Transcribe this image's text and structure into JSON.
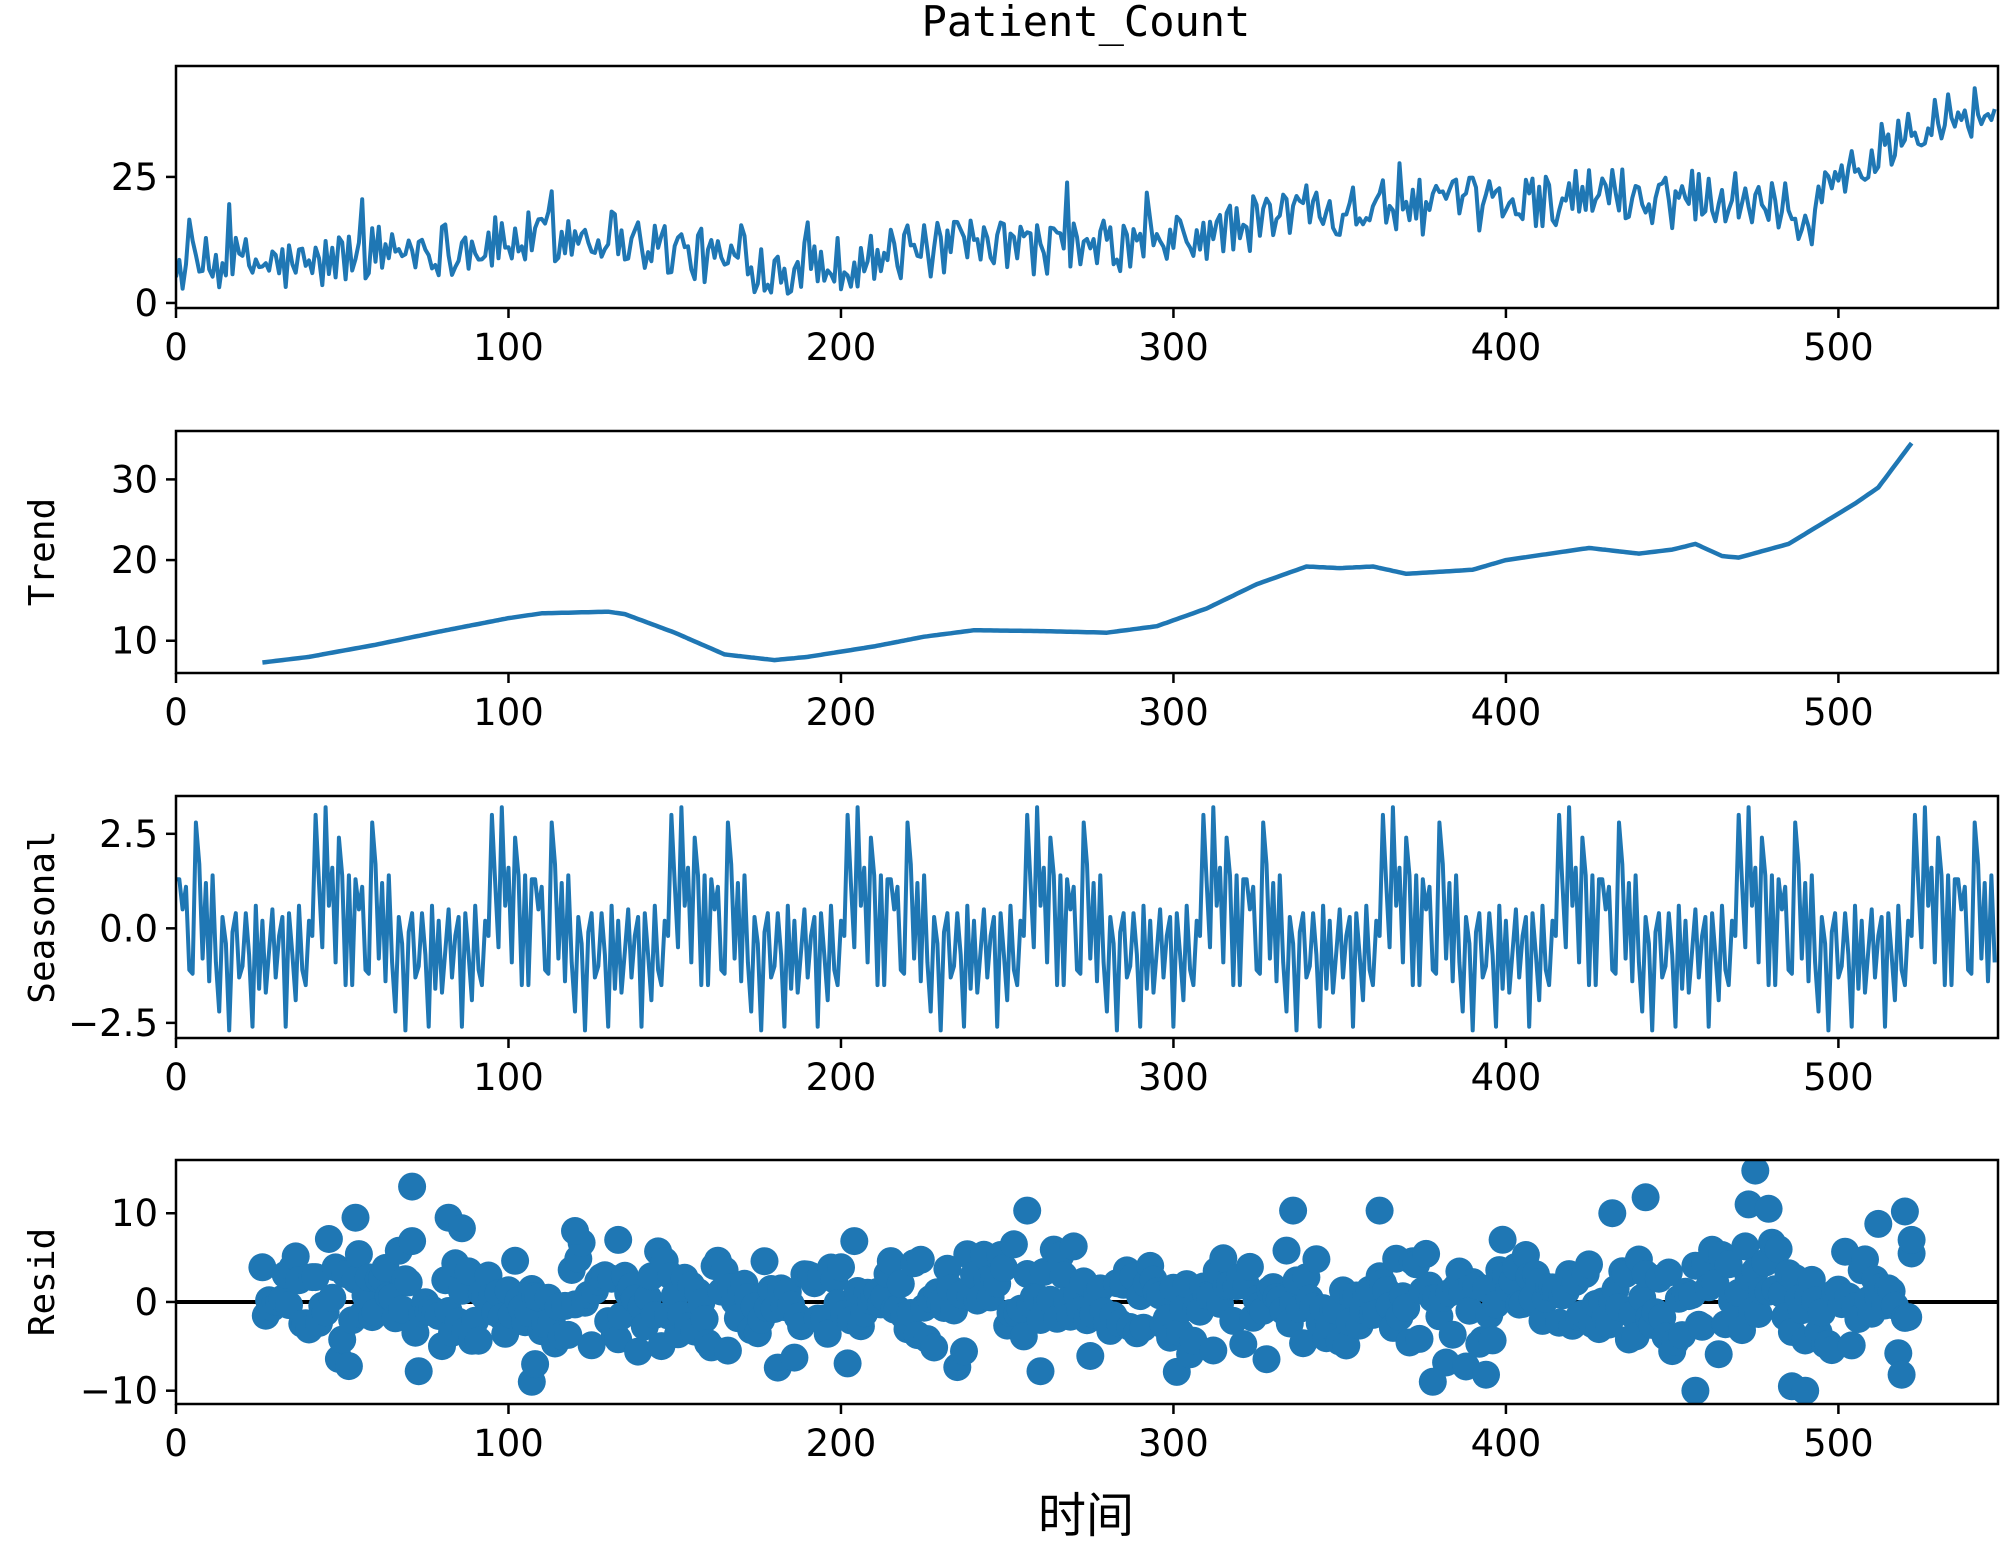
{
  "chart_data": {
    "type": "line",
    "title": "Patient_Count",
    "xlabel": "时间",
    "x_range": [
      0,
      548
    ],
    "x_ticks": [
      0,
      100,
      200,
      300,
      400,
      500
    ],
    "colors": {
      "series": "#1f77b4",
      "axis": "#000000",
      "zero_line": "#000000"
    },
    "panels": [
      {
        "name": "observed",
        "kind": "line",
        "ylabel": "",
        "ylim": [
          -1,
          47
        ],
        "y_ticks": [
          0,
          25
        ],
        "y_tick_labels": [
          "0",
          "25"
        ],
        "anchors": [
          [
            0,
            7
          ],
          [
            20,
            8
          ],
          [
            40,
            7
          ],
          [
            55,
            10
          ],
          [
            70,
            11
          ],
          [
            90,
            11
          ],
          [
            110,
            13
          ],
          [
            130,
            14
          ],
          [
            140,
            12
          ],
          [
            160,
            9
          ],
          [
            180,
            7
          ],
          [
            200,
            8
          ],
          [
            220,
            10
          ],
          [
            240,
            11
          ],
          [
            260,
            11
          ],
          [
            280,
            11
          ],
          [
            300,
            12
          ],
          [
            320,
            15
          ],
          [
            340,
            19
          ],
          [
            360,
            19
          ],
          [
            380,
            19
          ],
          [
            400,
            20
          ],
          [
            420,
            21
          ],
          [
            430,
            22
          ],
          [
            440,
            21
          ],
          [
            460,
            22
          ],
          [
            470,
            21
          ],
          [
            480,
            21
          ],
          [
            490,
            15
          ],
          [
            500,
            25
          ],
          [
            510,
            28
          ],
          [
            520,
            35
          ],
          [
            530,
            38
          ],
          [
            548,
            38
          ]
        ],
        "noise_amp": 5.5
      },
      {
        "name": "trend",
        "kind": "line",
        "ylabel": "Trend",
        "ylim": [
          6,
          36
        ],
        "y_ticks": [
          10,
          20,
          30
        ],
        "y_tick_labels": [
          "10",
          "20",
          "30"
        ],
        "x_start": 26,
        "x_end": 522,
        "anchors": [
          [
            26,
            7.3
          ],
          [
            40,
            8.0
          ],
          [
            60,
            9.5
          ],
          [
            80,
            11.2
          ],
          [
            100,
            12.8
          ],
          [
            110,
            13.4
          ],
          [
            130,
            13.6
          ],
          [
            135,
            13.3
          ],
          [
            150,
            11.0
          ],
          [
            165,
            8.3
          ],
          [
            180,
            7.6
          ],
          [
            190,
            8.0
          ],
          [
            210,
            9.3
          ],
          [
            225,
            10.5
          ],
          [
            240,
            11.3
          ],
          [
            260,
            11.2
          ],
          [
            280,
            11.0
          ],
          [
            295,
            11.8
          ],
          [
            310,
            14.0
          ],
          [
            325,
            17.0
          ],
          [
            340,
            19.2
          ],
          [
            350,
            19.0
          ],
          [
            360,
            19.2
          ],
          [
            370,
            18.3
          ],
          [
            390,
            18.8
          ],
          [
            400,
            20.0
          ],
          [
            410,
            20.6
          ],
          [
            425,
            21.5
          ],
          [
            440,
            20.8
          ],
          [
            450,
            21.3
          ],
          [
            457,
            22.0
          ],
          [
            465,
            20.5
          ],
          [
            470,
            20.3
          ],
          [
            485,
            22.0
          ],
          [
            495,
            24.5
          ],
          [
            505,
            27.0
          ],
          [
            512,
            29.0
          ],
          [
            522,
            34.5
          ]
        ]
      },
      {
        "name": "seasonal",
        "kind": "line",
        "ylabel": "Seasonal",
        "ylim": [
          -2.9,
          3.5
        ],
        "y_ticks": [
          -2.5,
          0.0,
          2.5
        ],
        "y_tick_labels": [
          "−2.5",
          "0.0",
          "2.5"
        ],
        "period": 53.5,
        "pattern": [
          1.3,
          0.5,
          1.1,
          -1.1,
          -1.2,
          2.8,
          1.7,
          -0.8,
          1.2,
          -1.4,
          1.4,
          -0.9,
          -2.2,
          0.3,
          -0.4,
          -2.7,
          -0.1,
          0.4,
          -1.3,
          -1.0,
          0.4,
          -0.7,
          -2.6,
          0.6,
          -1.6,
          0.2,
          -1.7,
          -0.6,
          0.5,
          -1.3,
          -0.2,
          0.3,
          -2.6,
          0.4,
          -0.7,
          -1.9,
          0.6,
          -1.1,
          -1.5,
          0.2,
          -0.2,
          3.0,
          1.2,
          -0.5,
          3.2,
          0.6,
          1.6,
          -0.9,
          2.4,
          1.4,
          -1.5,
          1.4,
          -1.5
        ]
      },
      {
        "name": "resid",
        "kind": "scatter",
        "ylabel": "Resid",
        "ylim": [
          -11.5,
          16
        ],
        "y_ticks": [
          -10,
          0,
          10
        ],
        "y_tick_labels": [
          "−10",
          "0",
          "10"
        ],
        "x_start": 26,
        "x_end": 522,
        "zero_line": 0,
        "outliers": [
          [
            54,
            9.5
          ],
          [
            71,
            13
          ],
          [
            82,
            9.5
          ],
          [
            86,
            8.3
          ],
          [
            107,
            -9
          ],
          [
            108,
            -7
          ],
          [
            120,
            8
          ],
          [
            133,
            7
          ],
          [
            256,
            10.3
          ],
          [
            260,
            -7.8
          ],
          [
            336,
            10.3
          ],
          [
            362,
            10.3
          ],
          [
            378,
            -9
          ],
          [
            394,
            -8.2
          ],
          [
            432,
            10
          ],
          [
            442,
            11.8
          ],
          [
            457,
            -10
          ],
          [
            473,
            11
          ],
          [
            475,
            14.8
          ],
          [
            479,
            10.5
          ],
          [
            486,
            -9.5
          ],
          [
            490,
            -10
          ],
          [
            512,
            8.8
          ],
          [
            520,
            10.2
          ],
          [
            522,
            7
          ]
        ]
      }
    ]
  }
}
